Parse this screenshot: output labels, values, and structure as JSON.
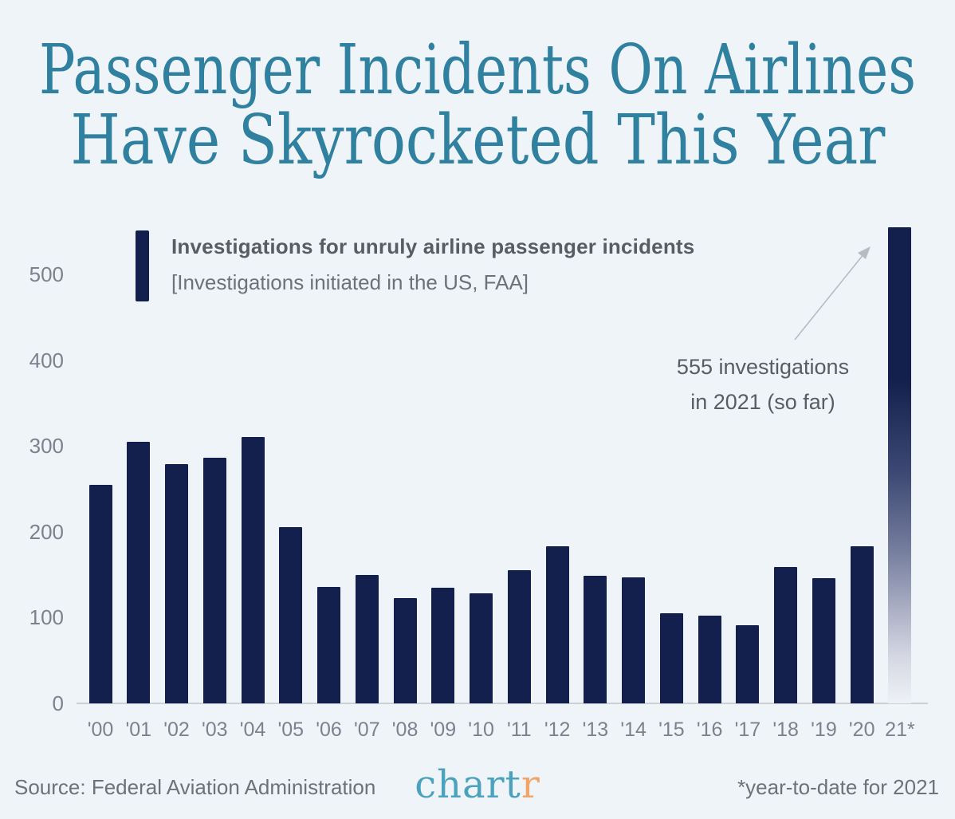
{
  "title": {
    "line1": "Passenger Incidents On Airlines",
    "line2": "Have Skyrocketed This Year"
  },
  "legend": {
    "label": "Investigations for unruly airline passenger incidents",
    "sublabel": "[Investigations initiated in the US, FAA]"
  },
  "annotation": {
    "line1": "555 investigations",
    "line2": "in 2021 (so far)"
  },
  "footer": {
    "source": "Source: Federal Aviation Administration",
    "logo_part1": "chart",
    "logo_part2": "r",
    "footnote": "*year-to-date for 2021"
  },
  "colors": {
    "background": "#eff4f9",
    "bar": "#13204d",
    "title": "#30809f",
    "axis_label": "#7b828e",
    "text": "#595c63",
    "muted_text": "#6e7177",
    "arrow": "#b7bbc2",
    "baseline": "#cdd1d6",
    "logo_teal": "#4aa2bd",
    "logo_orange": "#f2a469"
  },
  "chart_data": {
    "type": "bar",
    "title": "Investigations for unruly airline passenger incidents",
    "subtitle": "[Investigations initiated in the US, FAA]",
    "categories": [
      "'00",
      "'01",
      "'02",
      "'03",
      "'04",
      "'05",
      "'06",
      "'07",
      "'08",
      "'09",
      "'10",
      "'11",
      "'12",
      "'13",
      "'14",
      "'15",
      "'16",
      "'17",
      "'18",
      "'19",
      "'20",
      "21*"
    ],
    "values": [
      255,
      305,
      279,
      286,
      310,
      205,
      136,
      150,
      123,
      135,
      128,
      155,
      183,
      149,
      147,
      105,
      102,
      91,
      159,
      146,
      183,
      555
    ],
    "yticks": [
      0,
      100,
      200,
      300,
      400,
      500
    ],
    "ylim": [
      0,
      555
    ],
    "xlabel": "",
    "ylabel": "",
    "grid": false,
    "highlight_last_bar_gradient": true,
    "annotation": "555 investigations in 2021 (so far)",
    "legend_position": "top-left"
  }
}
